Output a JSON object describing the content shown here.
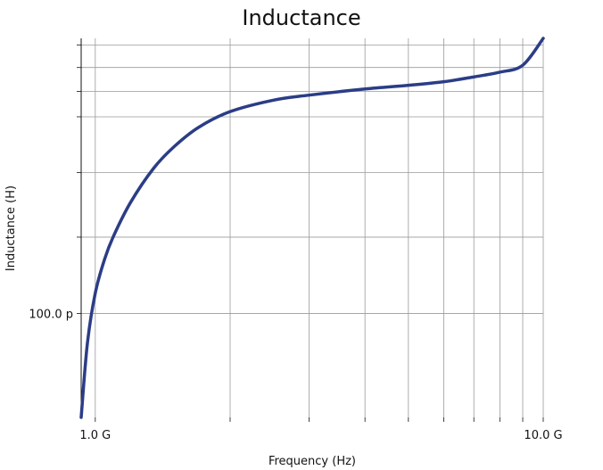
{
  "chart_data": {
    "type": "line",
    "title": "Inductance",
    "xlabel": "Frequency (Hz)",
    "ylabel": "Inductance (H)",
    "x_scale": "log",
    "y_scale": "log",
    "xlim": [
      930000000.0,
      10000000000.0
    ],
    "ylim": [
      7.8e-11,
      1.93e-10
    ],
    "grid": true,
    "x_major_ticks": [
      {
        "value": 1000000000.0,
        "label": "1.0 G"
      },
      {
        "value": 10000000000.0,
        "label": "10.0 G"
      }
    ],
    "x_minor_ticks": [
      2000000000.0,
      3000000000.0,
      4000000000.0,
      5000000000.0,
      6000000000.0,
      7000000000.0,
      8000000000.0,
      9000000000.0
    ],
    "y_major_ticks": [
      {
        "value": 1e-10,
        "label": "100.0 p"
      }
    ],
    "y_minor_ticks": [
      1.2e-10,
      1.4e-10,
      1.6e-10,
      1.7e-10,
      1.8e-10,
      1.9e-10
    ],
    "series": [
      {
        "color": "#2b3d86",
        "x": [
          930000000.0,
          960000000.0,
          1000000000.0,
          1050000000.0,
          1100000000.0,
          1200000000.0,
          1350000000.0,
          1500000000.0,
          1700000000.0,
          2000000000.0,
          2500000000.0,
          3000000000.0,
          4000000000.0,
          5000000000.0,
          6000000000.0,
          7000000000.0,
          8000000000.0,
          9000000000.0,
          10000000000.0
        ],
        "y": [
          7.8e-11,
          9.3e-11,
          1.05e-10,
          1.14e-10,
          1.205e-10,
          1.305e-10,
          1.415e-10,
          1.49e-10,
          1.56e-10,
          1.62e-10,
          1.665e-10,
          1.685e-10,
          1.71e-10,
          1.725e-10,
          1.74e-10,
          1.76e-10,
          1.78e-10,
          1.81e-10,
          1.93e-10
        ]
      }
    ]
  }
}
